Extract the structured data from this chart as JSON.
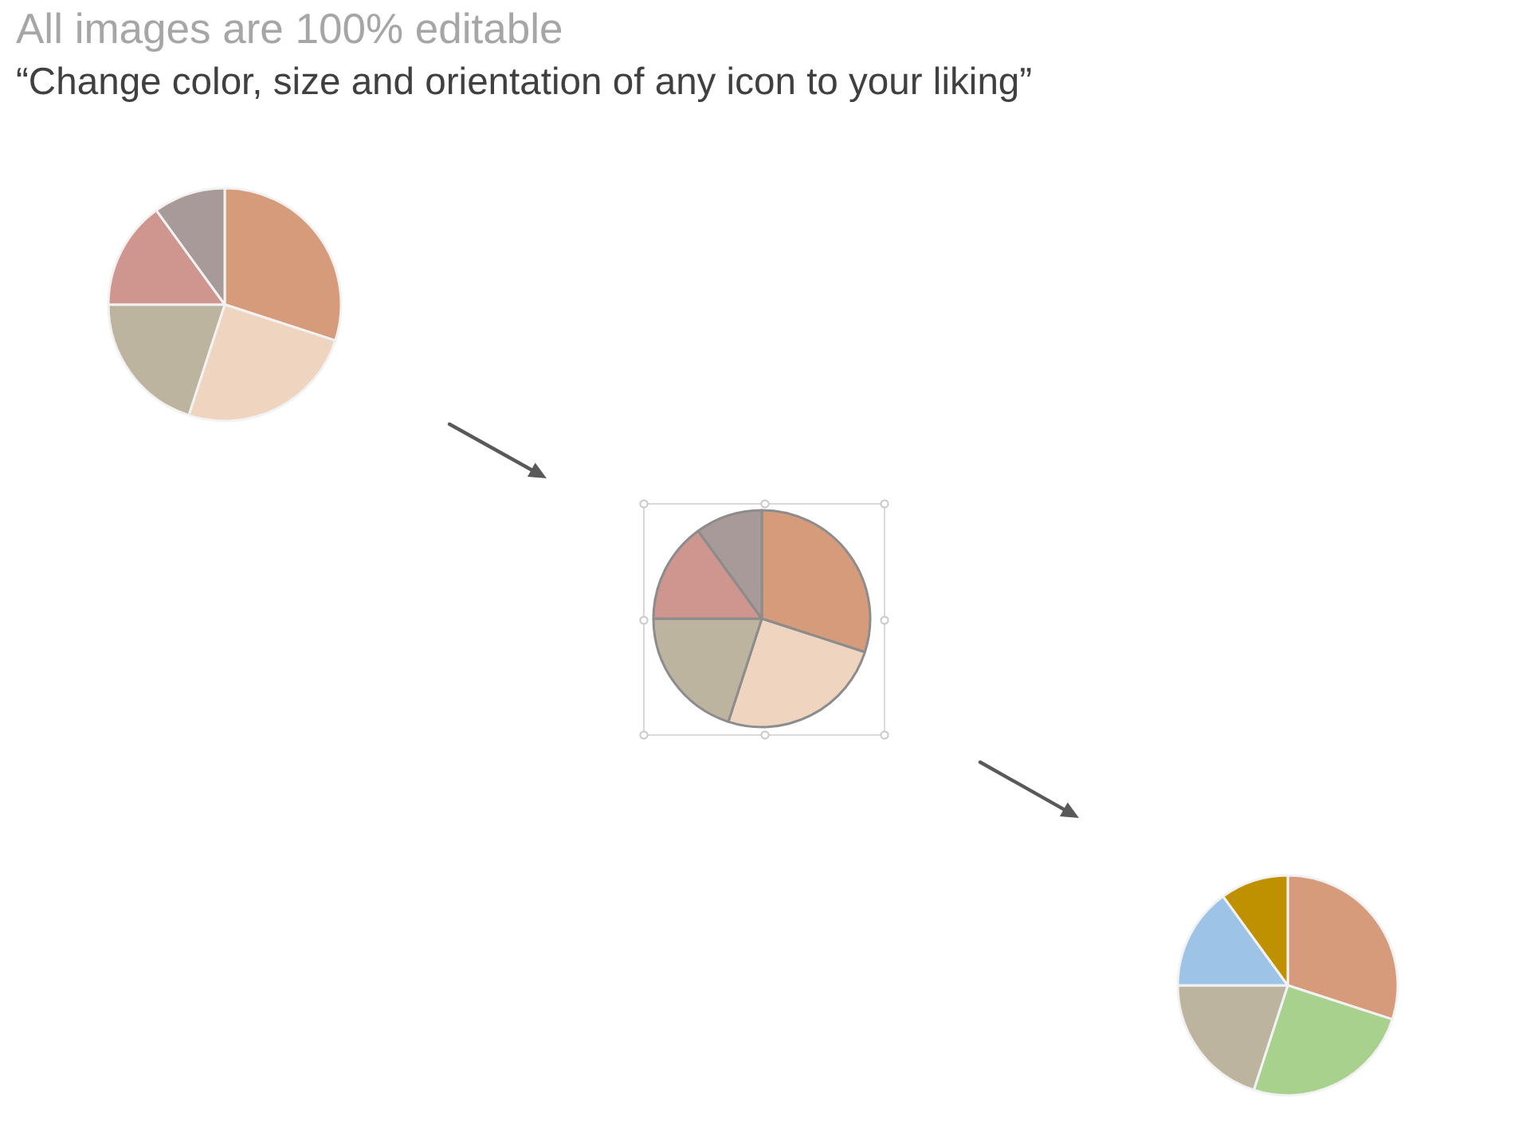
{
  "chart_data": [
    {
      "type": "pie",
      "title": "All images are 100% editable",
      "subtitle": "“Change color, size and orientation of any icon to your liking”",
      "categories": [
        null,
        null,
        null,
        null,
        null
      ],
      "values": [
        30,
        25,
        20,
        15,
        10
      ],
      "colors": [
        "#d69b7a",
        "#efd5c0",
        "#bdb49f",
        "#cf958f",
        "#a89a98"
      ]
    },
    {
      "type": "pie",
      "categories": [
        null,
        null,
        null,
        null,
        null
      ],
      "values": [
        30,
        25,
        20,
        15,
        10
      ],
      "colors": [
        "#d69b7a",
        "#efd5c0",
        "#bdb49f",
        "#cf958f",
        "#a89a98"
      ]
    },
    {
      "type": "pie",
      "categories": [
        null,
        null,
        null,
        null,
        null
      ],
      "values": [
        30,
        25,
        20,
        15,
        10
      ],
      "colors": [
        "#d69b7a",
        "#a9d18e",
        "#bdb49f",
        "#9dc3e6",
        "#bf9000"
      ]
    }
  ]
}
